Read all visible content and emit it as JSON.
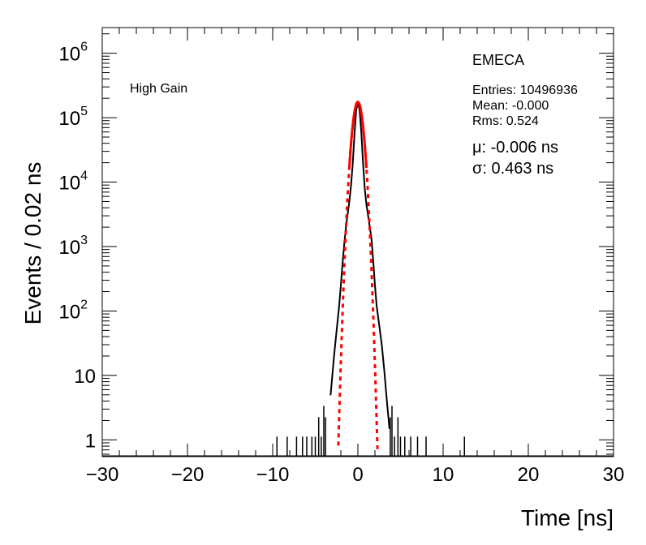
{
  "chart_data": {
    "type": "line",
    "title": "",
    "xlabel": "Time [ns]",
    "ylabel": "Events / 0.02 ns",
    "xlim": [
      -30,
      30
    ],
    "ylim": [
      0.55,
      2500000
    ],
    "yscale": "log",
    "x_ticks": [
      -30,
      -20,
      -10,
      0,
      10,
      20,
      30
    ],
    "x_tick_labels": [
      "−30",
      "−20",
      "−10",
      "0",
      "10",
      "20",
      "30"
    ],
    "y_ticks": [
      {
        "value": 1,
        "base": "1",
        "exp": ""
      },
      {
        "value": 10,
        "base": "10",
        "exp": ""
      },
      {
        "value": 100,
        "base": "10",
        "exp": "2"
      },
      {
        "value": 1000,
        "base": "10",
        "exp": "3"
      },
      {
        "value": 10000,
        "base": "10",
        "exp": "4"
      },
      {
        "value": 100000,
        "base": "10",
        "exp": "5"
      },
      {
        "value": 1000000,
        "base": "10",
        "exp": "6"
      }
    ],
    "annotations": {
      "gain_label": "High Gain",
      "detector_label": "EMECA",
      "entries": "Entries: 10496936",
      "mean": "Mean: -0.000",
      "rms": "Rms: 0.524",
      "mu": "μ: -0.006 ns",
      "sigma": "σ: 0.463 ns"
    },
    "series": [
      {
        "kind": "histogram",
        "color": "#000000",
        "x": [
          -3.2,
          -2.8,
          -2.5,
          -2.2,
          -2.0,
          -1.8,
          -1.6,
          -1.4,
          -1.2,
          -1.0,
          -0.8,
          -0.6,
          -0.4,
          -0.2,
          0.0,
          0.2,
          0.4,
          0.6,
          0.8,
          1.0,
          1.2,
          1.4,
          1.6,
          1.8,
          2.0,
          2.2,
          2.5,
          2.8,
          3.1,
          3.4,
          3.7
        ],
        "y": [
          5,
          20,
          50,
          120,
          250,
          550,
          1100,
          2000,
          3200,
          5000,
          9000,
          20000,
          55000,
          130000,
          175000,
          130000,
          60000,
          20000,
          8000,
          4500,
          3000,
          2000,
          1300,
          600,
          250,
          120,
          60,
          30,
          12,
          4,
          1.5
        ]
      },
      {
        "kind": "sparse-tail-spikes",
        "color": "#000000",
        "x": [
          -9.5,
          -8.3,
          -7.2,
          -6.5,
          -6.0,
          -5.4,
          -5.0,
          -4.6,
          -4.3,
          -4.0,
          -3.8,
          3.8,
          4.0,
          4.3,
          4.7,
          5.0,
          5.5,
          6.2,
          7.0,
          8.0,
          12.5
        ],
        "y": [
          1,
          1,
          1,
          1,
          1,
          1,
          1,
          2,
          1,
          3,
          2,
          2,
          3,
          1,
          2,
          1,
          1,
          1,
          1,
          1,
          1
        ]
      },
      {
        "kind": "gaussian-fit",
        "color": "#ff0000",
        "mu": -0.006,
        "sigma": 0.463,
        "amplitude": 175000,
        "solid_range": [
          -1.0,
          1.0
        ],
        "dashed_range": [
          -2.3,
          2.3
        ]
      }
    ]
  }
}
